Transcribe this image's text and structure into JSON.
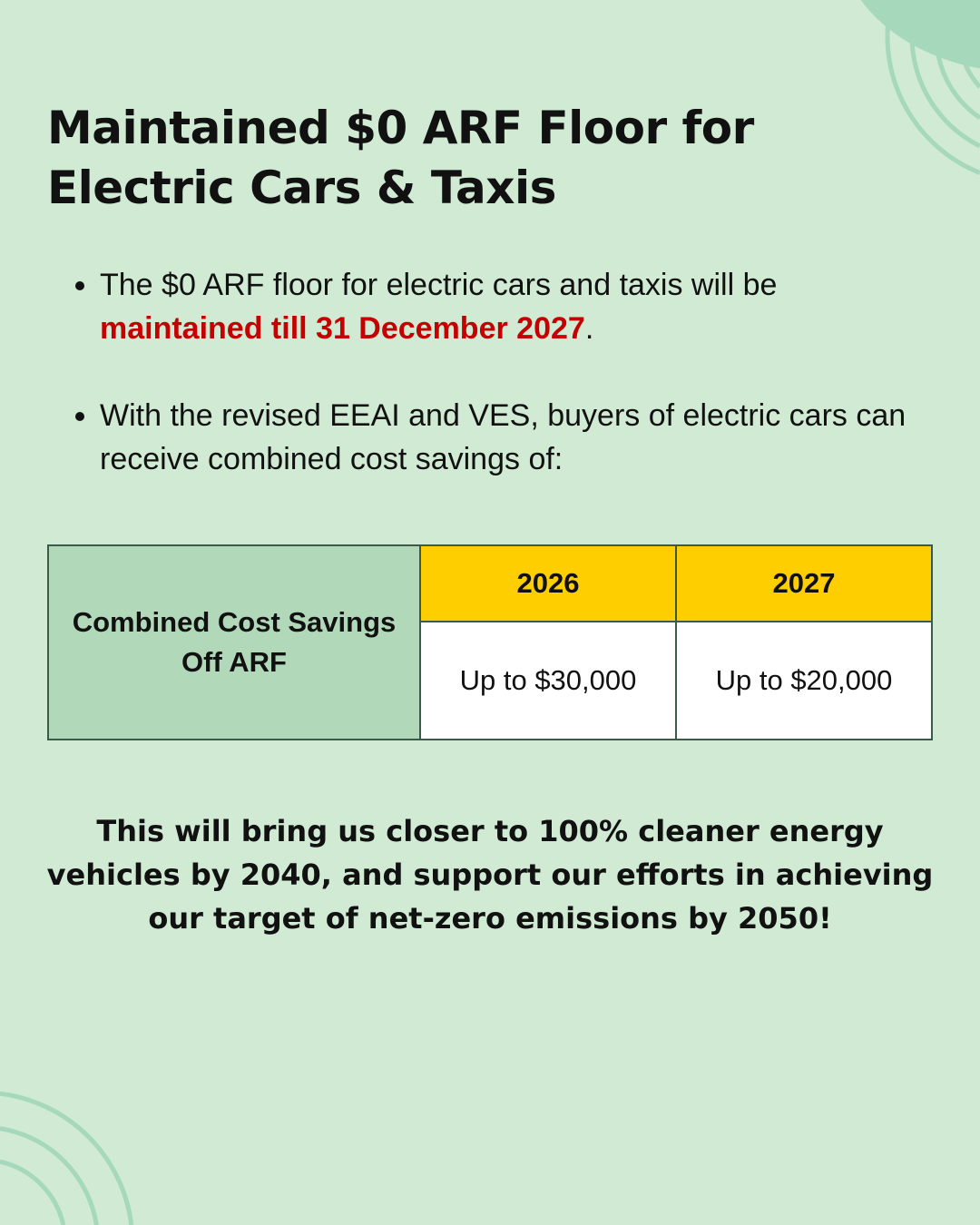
{
  "title": "Maintained $0 ARF Floor for Electric Cars & Taxis",
  "bullets": [
    {
      "text": "The $0 ARF floor for electric cars and taxis will be ",
      "highlight": "maintained till 31 December 2027",
      "suffix": "."
    },
    {
      "text": "With the revised EEAI and VES, buyers of electric cars can receive combined cost savings of:"
    }
  ],
  "table": {
    "row_label": "Combined Cost Savings Off ARF",
    "columns": [
      "2026",
      "2027"
    ],
    "values": [
      "Up to $30,000",
      "Up to $20,000"
    ]
  },
  "closing": "This will bring us closer to 100% cleaner energy vehicles by 2040, and support our efforts in achieving our target of net-zero emissions by 2050!",
  "colors": {
    "background": "#d0ead4",
    "accent_green": "#a6d8bc",
    "highlight_red": "#c40000",
    "header_yellow": "#ffce00",
    "label_green": "#b1d9b9"
  }
}
